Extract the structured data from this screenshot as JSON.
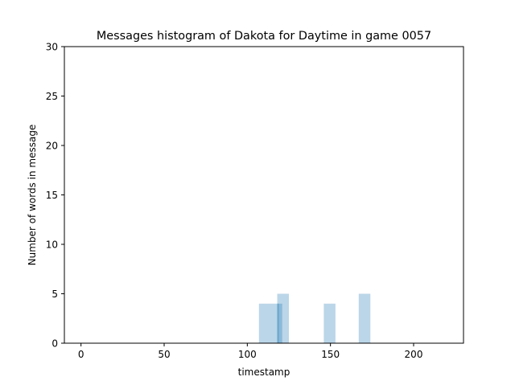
{
  "chart_data": {
    "type": "bar",
    "title": "Messages histogram of Dakota for Daytime in game 0057",
    "xlabel": "timestamp",
    "ylabel": "Number of words in message",
    "xlim": [
      -10,
      230
    ],
    "ylim": [
      0,
      30
    ],
    "xticks": [
      0,
      50,
      100,
      150,
      200
    ],
    "yticks": [
      0,
      5,
      10,
      15,
      20,
      25,
      30
    ],
    "grid": false,
    "bar_color": "#1f77b4",
    "bar_alpha": 0.3,
    "bars": [
      {
        "x_start": 107,
        "x_end": 119,
        "value": 4
      },
      {
        "x_start": 118,
        "x_end": 121,
        "value": 4
      },
      {
        "x_start": 118,
        "x_end": 125,
        "value": 5
      },
      {
        "x_start": 146,
        "x_end": 153,
        "value": 4
      },
      {
        "x_start": 167,
        "x_end": 174,
        "value": 5
      }
    ]
  }
}
